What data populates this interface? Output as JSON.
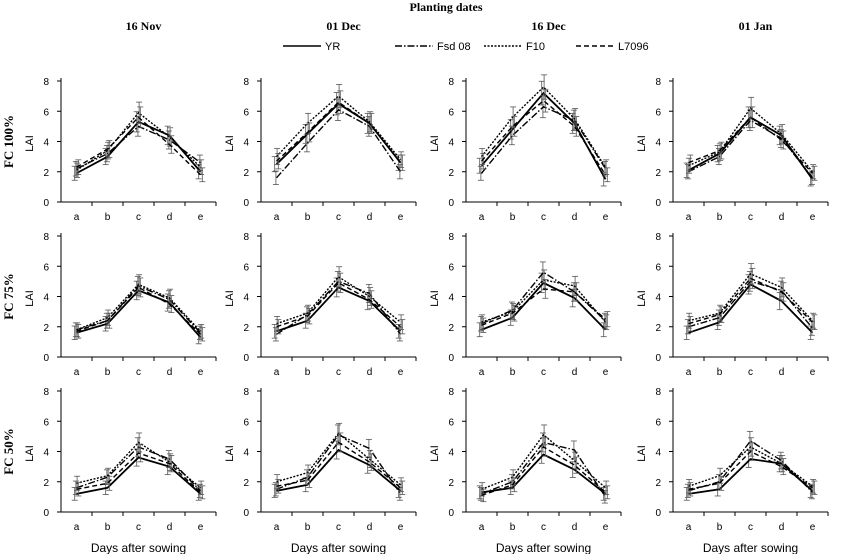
{
  "title": "Planting dates",
  "legend": [
    {
      "name": "YR",
      "style": "solid"
    },
    {
      "name": "Fsd 08",
      "style": "dashdot"
    },
    {
      "name": "F10",
      "style": "dotted"
    },
    {
      "name": "L7096",
      "style": "dashed"
    }
  ],
  "columns": [
    "16 Nov",
    "01 Dec",
    "16 Dec",
    "01 Jan"
  ],
  "rows": [
    "FC 100%",
    "FC 75%",
    "FC 50%"
  ],
  "ylabel": "LAI",
  "xlabel": "Days after sowing",
  "categories": [
    "a",
    "b",
    "c",
    "d",
    "e"
  ],
  "yticks": [
    "0",
    "2",
    "4",
    "6",
    "8"
  ],
  "colors": {
    "line": "#000000",
    "axis": "#000000",
    "errorbar": "#555555"
  },
  "chart_data": {
    "type": "line",
    "ylim": [
      0,
      8
    ],
    "grid": false,
    "legend_position": "top",
    "panels": [
      {
        "row": "FC 100%",
        "column": "16 Nov",
        "series": [
          {
            "name": "YR",
            "values": [
              1.9,
              3.0,
              5.3,
              4.4,
              2.0
            ]
          },
          {
            "name": "Fsd 08",
            "values": [
              2.2,
              3.2,
              5.0,
              4.1,
              2.6
            ]
          },
          {
            "name": "F10",
            "values": [
              2.1,
              3.4,
              5.9,
              4.3,
              2.3
            ]
          },
          {
            "name": "L7096",
            "values": [
              2.3,
              3.5,
              5.6,
              3.8,
              1.8
            ]
          }
        ]
      },
      {
        "row": "FC 100%",
        "column": "01 Dec",
        "series": [
          {
            "name": "YR",
            "values": [
              2.5,
              4.5,
              6.5,
              5.2,
              2.6
            ]
          },
          {
            "name": "Fsd 08",
            "values": [
              1.6,
              3.9,
              6.1,
              5.0,
              2.0
            ]
          },
          {
            "name": "F10",
            "values": [
              3.0,
              5.2,
              7.0,
              5.3,
              2.8
            ]
          },
          {
            "name": "L7096",
            "values": [
              2.7,
              4.6,
              6.6,
              5.2,
              2.6
            ]
          }
        ]
      },
      {
        "row": "FC 100%",
        "column": "16 Dec",
        "series": [
          {
            "name": "YR",
            "values": [
              2.4,
              4.8,
              7.2,
              5.2,
              1.5
            ]
          },
          {
            "name": "Fsd 08",
            "values": [
              1.9,
              4.4,
              6.3,
              5.4,
              2.2
            ]
          },
          {
            "name": "F10",
            "values": [
              3.0,
              5.6,
              7.6,
              5.5,
              2.3
            ]
          },
          {
            "name": "L7096",
            "values": [
              2.7,
              5.0,
              6.7,
              5.0,
              1.8
            ]
          }
        ]
      },
      {
        "row": "FC 100%",
        "column": "01 Jan",
        "series": [
          {
            "name": "YR",
            "values": [
              2.1,
              3.2,
              5.6,
              4.4,
              1.5
            ]
          },
          {
            "name": "Fsd 08",
            "values": [
              2.0,
              3.0,
              5.4,
              4.2,
              1.6
            ]
          },
          {
            "name": "F10",
            "values": [
              2.4,
              3.3,
              6.2,
              4.5,
              2.0
            ]
          },
          {
            "name": "L7096",
            "values": [
              2.6,
              3.4,
              5.6,
              4.1,
              1.9
            ]
          }
        ]
      },
      {
        "row": "FC 75%",
        "column": "16 Nov",
        "series": [
          {
            "name": "YR",
            "values": [
              1.6,
              2.2,
              4.4,
              3.6,
              1.3
            ]
          },
          {
            "name": "Fsd 08",
            "values": [
              1.8,
              2.4,
              4.7,
              3.8,
              1.6
            ]
          },
          {
            "name": "F10",
            "values": [
              1.8,
              2.6,
              4.8,
              3.9,
              1.7
            ]
          },
          {
            "name": "L7096",
            "values": [
              1.7,
              2.4,
              4.6,
              3.5,
              1.5
            ]
          }
        ]
      },
      {
        "row": "FC 75%",
        "column": "01 Dec",
        "series": [
          {
            "name": "YR",
            "values": [
              1.7,
              2.4,
              4.6,
              3.7,
              1.7
            ]
          },
          {
            "name": "Fsd 08",
            "values": [
              1.5,
              2.8,
              5.0,
              4.2,
              1.5
            ]
          },
          {
            "name": "F10",
            "values": [
              2.2,
              2.9,
              5.3,
              4.0,
              2.3
            ]
          },
          {
            "name": "L7096",
            "values": [
              2.0,
              2.7,
              4.9,
              3.8,
              2.0
            ]
          }
        ]
      },
      {
        "row": "FC 75%",
        "column": "16 Dec",
        "series": [
          {
            "name": "YR",
            "values": [
              1.8,
              2.6,
              4.9,
              3.9,
              1.8
            ]
          },
          {
            "name": "Fsd 08",
            "values": [
              2.2,
              3.1,
              5.6,
              4.3,
              2.4
            ]
          },
          {
            "name": "F10",
            "values": [
              2.3,
              3.0,
              5.1,
              4.7,
              2.3
            ]
          },
          {
            "name": "L7096",
            "values": [
              2.1,
              2.9,
              4.5,
              4.3,
              2.5
            ]
          }
        ]
      },
      {
        "row": "FC 75%",
        "column": "01 Jan",
        "series": [
          {
            "name": "YR",
            "values": [
              1.6,
              2.3,
              4.8,
              3.7,
              1.6
            ]
          },
          {
            "name": "Fsd 08",
            "values": [
              2.0,
              2.6,
              5.0,
              4.4,
              1.9
            ]
          },
          {
            "name": "F10",
            "values": [
              2.4,
              2.9,
              5.5,
              4.6,
              2.4
            ]
          },
          {
            "name": "L7096",
            "values": [
              2.2,
              2.8,
              5.2,
              4.3,
              2.3
            ]
          }
        ]
      },
      {
        "row": "FC 50%",
        "column": "16 Nov",
        "series": [
          {
            "name": "YR",
            "values": [
              1.2,
              1.6,
              3.6,
              3.0,
              1.2
            ]
          },
          {
            "name": "Fsd 08",
            "values": [
              1.6,
              2.3,
              4.3,
              3.5,
              1.4
            ]
          },
          {
            "name": "F10",
            "values": [
              1.9,
              2.4,
              4.6,
              3.3,
              1.6
            ]
          },
          {
            "name": "L7096",
            "values": [
              1.5,
              1.9,
              3.9,
              3.2,
              1.3
            ]
          }
        ]
      },
      {
        "row": "FC 50%",
        "column": "01 Dec",
        "series": [
          {
            "name": "YR",
            "values": [
              1.4,
              1.8,
              4.1,
              3.1,
              1.4
            ]
          },
          {
            "name": "Fsd 08",
            "values": [
              1.5,
              2.3,
              5.1,
              4.2,
              1.2
            ]
          },
          {
            "name": "F10",
            "values": [
              2.0,
              2.6,
              5.2,
              3.5,
              1.8
            ]
          },
          {
            "name": "L7096",
            "values": [
              1.7,
              2.1,
              4.6,
              3.3,
              1.6
            ]
          }
        ]
      },
      {
        "row": "FC 50%",
        "column": "16 Dec",
        "series": [
          {
            "name": "YR",
            "values": [
              1.3,
              1.6,
              3.8,
              2.8,
              1.2
            ]
          },
          {
            "name": "Fsd 08",
            "values": [
              1.2,
              2.0,
              4.6,
              4.1,
              1.0
            ]
          },
          {
            "name": "F10",
            "values": [
              1.5,
              2.3,
              5.1,
              3.4,
              1.6
            ]
          },
          {
            "name": "L7096",
            "values": [
              1.1,
              1.8,
              4.3,
              3.1,
              1.3
            ]
          }
        ]
      },
      {
        "row": "FC 50%",
        "column": "01 Jan",
        "series": [
          {
            "name": "YR",
            "values": [
              1.2,
              1.5,
              3.5,
              3.2,
              1.4
            ]
          },
          {
            "name": "Fsd 08",
            "values": [
              1.4,
              2.0,
              4.7,
              3.4,
              1.3
            ]
          },
          {
            "name": "F10",
            "values": [
              1.7,
              2.4,
              4.3,
              3.2,
              1.7
            ]
          },
          {
            "name": "L7096",
            "values": [
              1.5,
              1.9,
              4.0,
              3.0,
              1.6
            ]
          }
        ]
      }
    ]
  }
}
